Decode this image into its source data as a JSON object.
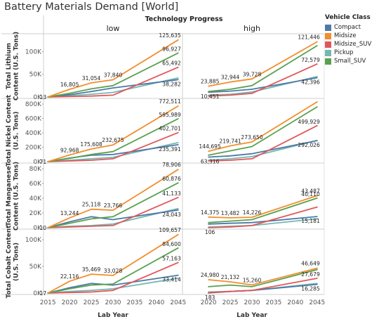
{
  "title": "Battery Materials Demand [World]",
  "chart_data": {
    "type": "line",
    "panel_title": "Technology Progress",
    "columns": [
      "low",
      "high"
    ],
    "x_label": "Lab Year",
    "x_ticks": [
      2015,
      2020,
      2025,
      2030,
      2035,
      2040,
      2045
    ],
    "x_range": [
      2014,
      2046
    ],
    "legend": {
      "title": "Vehicle Class",
      "placement": "right",
      "items": [
        {
          "name": "Compact",
          "color": "#4e79a7"
        },
        {
          "name": "Midsize",
          "color": "#f28e2b"
        },
        {
          "name": "Midsize_SUV",
          "color": "#e15759"
        },
        {
          "name": "Pickup",
          "color": "#76b7b2"
        },
        {
          "name": "Small_SUV",
          "color": "#59a14f"
        }
      ]
    },
    "rows": [
      {
        "ylabel": [
          "Total Lithium",
          "Content (U.S. Tons)"
        ],
        "ylim": [
          0,
          130000
        ],
        "y_ticks": [
          {
            "v": 0,
            "t": "0K"
          },
          {
            "v": 50000,
            "t": "50K"
          },
          {
            "v": 100000,
            "t": "100K"
          }
        ],
        "panels": [
          {
            "x": [
              2015,
              2020,
              2025,
              2030,
              2045
            ],
            "series": [
              {
                "values": [
                  13,
                  5000,
                  12000,
                  20000,
                  38282
                ]
              },
              {
                "values": [
                  13,
                  16805,
                  31054,
                  37840,
                  125635
                ]
              },
              {
                "values": [
                  13,
                  1000,
                  2000,
                  4000,
                  65492
                ]
              },
              {
                "values": [
                  13,
                  3000,
                  6000,
                  10000,
                  42000
                ]
              },
              {
                "values": [
                  13,
                  8000,
                  18000,
                  25000,
                  96927
                ]
              }
            ],
            "labels": [
              {
                "s": 1,
                "i": 0,
                "text": "13"
              },
              {
                "s": 1,
                "i": 1,
                "text": "16,805"
              },
              {
                "s": 1,
                "i": 2,
                "text": "31,054"
              },
              {
                "s": 1,
                "i": 3,
                "text": "37,840"
              },
              {
                "s": 1,
                "i": 4,
                "text": "125,635"
              },
              {
                "s": 4,
                "i": 4,
                "text": "96,927"
              },
              {
                "s": 2,
                "i": 4,
                "text": "65,492"
              },
              {
                "s": 0,
                "i": 4,
                "text": "38,282"
              }
            ]
          },
          {
            "x": [
              2020,
              2025,
              2030,
              2045
            ],
            "series": [
              {
                "values": [
                  10451,
                  13000,
                  17000,
                  42396
                ]
              },
              {
                "values": [
                  23885,
                  32944,
                  39728,
                  121446
                ]
              },
              {
                "values": [
                  2000,
                  4000,
                  8000,
                  72579
                ]
              },
              {
                "values": [
                  4000,
                  6000,
                  11000,
                  45000
                ]
              },
              {
                "values": [
                  12000,
                  17000,
                  25000,
                  113000
                ]
              }
            ],
            "labels": [
              {
                "s": 1,
                "i": 0,
                "text": "23,885"
              },
              {
                "s": 1,
                "i": 1,
                "text": "32,944"
              },
              {
                "s": 1,
                "i": 2,
                "text": "39,728"
              },
              {
                "s": 1,
                "i": 3,
                "text": "121,446"
              },
              {
                "s": 0,
                "i": 0,
                "text": "10,451"
              },
              {
                "s": 2,
                "i": 3,
                "text": "72,579"
              },
              {
                "s": 0,
                "i": 3,
                "text": "42,396"
              }
            ]
          }
        ]
      },
      {
        "ylabel": [
          "Total Nickel Content",
          "(U.S. Tons)"
        ],
        "ylim": [
          0,
          820000
        ],
        "y_ticks": [
          {
            "v": 0,
            "t": "0K"
          },
          {
            "v": 200000,
            "t": "200K"
          },
          {
            "v": 400000,
            "t": "400K"
          },
          {
            "v": 600000,
            "t": "600K"
          },
          {
            "v": 800000,
            "t": "800K"
          }
        ],
        "panels": [
          {
            "x": [
              2015,
              2020,
              2025,
              2030,
              2045
            ],
            "series": [
              {
                "values": [
                  71,
                  50000,
                  90000,
                  100000,
                  235391
                ]
              },
              {
                "values": [
                  71,
                  92968,
                  175608,
                  232675,
                  772511
                ]
              },
              {
                "values": [
                  71,
                  10000,
                  20000,
                  40000,
                  402701
                ]
              },
              {
                "values": [
                  71,
                  20000,
                  40000,
                  60000,
                  265000
                ]
              },
              {
                "values": [
                  71,
                  45000,
                  100000,
                  140000,
                  595989
                ]
              }
            ],
            "labels": [
              {
                "s": 1,
                "i": 0,
                "text": "71"
              },
              {
                "s": 1,
                "i": 1,
                "text": "92,968"
              },
              {
                "s": 1,
                "i": 2,
                "text": "175,608"
              },
              {
                "s": 1,
                "i": 3,
                "text": "232,675"
              },
              {
                "s": 1,
                "i": 4,
                "text": "772,511"
              },
              {
                "s": 4,
                "i": 4,
                "text": "595,989"
              },
              {
                "s": 2,
                "i": 4,
                "text": "402,701"
              },
              {
                "s": 0,
                "i": 4,
                "text": "235,391"
              }
            ]
          },
          {
            "x": [
              2020,
              2025,
              2030,
              2045
            ],
            "series": [
              {
                "values": [
                  63316,
                  80000,
                  110000,
                  292026
                ]
              },
              {
                "values": [
                  144695,
                  219741,
                  273650,
                  830000
                ]
              },
              {
                "values": [
                  10000,
                  20000,
                  40000,
                  499929
                ]
              },
              {
                "values": [
                  20000,
                  40000,
                  70000,
                  295000
                ]
              },
              {
                "values": [
                  90000,
                  150000,
                  210000,
                  760000
                ]
              }
            ],
            "labels": [
              {
                "s": 1,
                "i": 0,
                "text": "144,695"
              },
              {
                "s": 1,
                "i": 1,
                "text": "219,741"
              },
              {
                "s": 1,
                "i": 2,
                "text": "273,650"
              },
              {
                "s": 0,
                "i": 0,
                "text": "63,316"
              },
              {
                "s": 2,
                "i": 3,
                "text": "499,929"
              },
              {
                "s": 0,
                "i": 3,
                "text": "292,026"
              }
            ]
          }
        ]
      },
      {
        "ylabel": [
          "Total Manganese",
          "Content (U.S. Tons)"
        ],
        "ylim": [
          0,
          82000
        ],
        "y_ticks": [
          {
            "v": 0,
            "t": "0K"
          },
          {
            "v": 20000,
            "t": "20K"
          },
          {
            "v": 40000,
            "t": "40K"
          },
          {
            "v": 60000,
            "t": "60K"
          },
          {
            "v": 80000,
            "t": "80K"
          }
        ],
        "panels": [
          {
            "x": [
              2015,
              2020,
              2025,
              2030,
              2045
            ],
            "series": [
              {
                "values": [
                  10,
                  8000,
                  15000,
                  11000,
                  24043
                ]
              },
              {
                "values": [
                  10,
                  13244,
                  25118,
                  23766,
                  78906
                ]
              },
              {
                "values": [
                  10,
                  1000,
                  2000,
                  3000,
                  41133
                ]
              },
              {
                "values": [
                  10,
                  2000,
                  3000,
                  5000,
                  26000
                ]
              },
              {
                "values": [
                  10,
                  6000,
                  12000,
                  15000,
                  60876
                ]
              }
            ],
            "labels": [
              {
                "s": 1,
                "i": 0,
                "text": "10"
              },
              {
                "s": 1,
                "i": 1,
                "text": "13,244"
              },
              {
                "s": 1,
                "i": 2,
                "text": "25,118"
              },
              {
                "s": 1,
                "i": 3,
                "text": "23,766"
              },
              {
                "s": 1,
                "i": 4,
                "text": "78,906"
              },
              {
                "s": 4,
                "i": 4,
                "text": "60,876"
              },
              {
                "s": 2,
                "i": 4,
                "text": "41,133"
              },
              {
                "s": 0,
                "i": 4,
                "text": "24,043"
              }
            ]
          },
          {
            "x": [
              2020,
              2025,
              2030,
              2045
            ],
            "series": [
              {
                "values": [
                  5000,
                  6000,
                  7000,
                  15181
                ]
              },
              {
                "values": [
                  14375,
                  13482,
                  14226,
                  43487
                ]
              },
              {
                "values": [
                  106,
                  1000,
                  3000,
                  28000
                ]
              },
              {
                "values": [
                  1000,
                  2000,
                  3000,
                  12000
                ]
              },
              {
                "values": [
                  7000,
                  9000,
                  11000,
                  40110
                ]
              }
            ],
            "labels": [
              {
                "s": 1,
                "i": 0,
                "text": "14,375"
              },
              {
                "s": 1,
                "i": 1,
                "text": "13,482"
              },
              {
                "s": 1,
                "i": 2,
                "text": "14,226"
              },
              {
                "s": 2,
                "i": 0,
                "text": "106"
              },
              {
                "s": 1,
                "i": 3,
                "text": "43,487"
              },
              {
                "s": 4,
                "i": 3,
                "text": "40,110"
              },
              {
                "s": 0,
                "i": 3,
                "text": "15,181"
              }
            ]
          }
        ]
      },
      {
        "ylabel": [
          "Total Cobalt Content",
          "(U.S. Tons)"
        ],
        "ylim": [
          0,
          112000
        ],
        "y_ticks": [
          {
            "v": 0,
            "t": "0K"
          },
          {
            "v": 50000,
            "t": "50K"
          },
          {
            "v": 100000,
            "t": "100K"
          }
        ],
        "panels": [
          {
            "x": [
              2015,
              2020,
              2025,
              2030,
              2045
            ],
            "series": [
              {
                "values": [
                  17,
                  10000,
                  18000,
                  15000,
                  33414
                ]
              },
              {
                "values": [
                  17,
                  22116,
                  35469,
                  33028,
                  109657
                ]
              },
              {
                "values": [
                  17,
                  1000,
                  2000,
                  5000,
                  57163
                ]
              },
              {
                "values": [
                  17,
                  3000,
                  5000,
                  8000,
                  28000
                ]
              },
              {
                "values": [
                  17,
                  8000,
                  15000,
                  17000,
                  84600
                ]
              }
            ],
            "labels": [
              {
                "s": 1,
                "i": 0,
                "text": "17"
              },
              {
                "s": 1,
                "i": 1,
                "text": "22,116"
              },
              {
                "s": 1,
                "i": 2,
                "text": "35,469"
              },
              {
                "s": 1,
                "i": 3,
                "text": "33,028"
              },
              {
                "s": 1,
                "i": 4,
                "text": "109,657"
              },
              {
                "s": 4,
                "i": 4,
                "text": "84,600"
              },
              {
                "s": 2,
                "i": 4,
                "text": "57,163"
              },
              {
                "s": 0,
                "i": 4,
                "text": "33,414"
              }
            ]
          },
          {
            "x": [
              2020,
              2025,
              2030,
              2045
            ],
            "series": [
              {
                "values": [
                  183,
                  3000,
                  5000,
                  16285
                ]
              },
              {
                "values": [
                  24980,
                  21132,
                  15260,
                  46649
                ]
              },
              {
                "values": [
                  1000,
                  3000,
                  5000,
                  27679
                ]
              },
              {
                "values": [
                  2000,
                  3000,
                  5000,
                  18000
                ]
              },
              {
                "values": [
                  12000,
                  15000,
                  12000,
                  44000
                ]
              }
            ],
            "labels": [
              {
                "s": 1,
                "i": 0,
                "text": "24,980"
              },
              {
                "s": 1,
                "i": 1,
                "text": "21,132"
              },
              {
                "s": 1,
                "i": 2,
                "text": "15,260"
              },
              {
                "s": 0,
                "i": 0,
                "text": "183"
              },
              {
                "s": 1,
                "i": 3,
                "text": "46,649"
              },
              {
                "s": 2,
                "i": 3,
                "text": "27,679"
              },
              {
                "s": 0,
                "i": 3,
                "text": "16,285"
              }
            ]
          }
        ]
      }
    ]
  }
}
